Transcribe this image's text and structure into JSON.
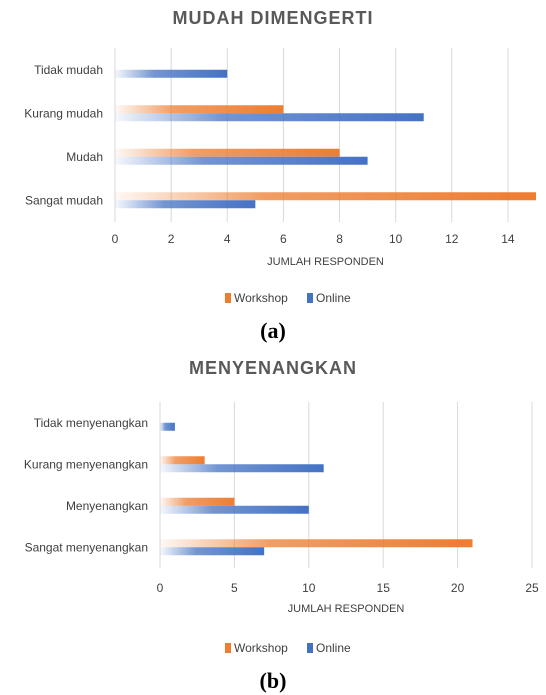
{
  "colors": {
    "workshop": "#ed7d31",
    "online": "#4472c4"
  },
  "legend": {
    "workshop_label": "Workshop",
    "online_label": "Online"
  },
  "chart_data": [
    {
      "type": "bar",
      "orientation": "horizontal",
      "title": "MUDAH DIMENGERTI",
      "xlabel": "JUMLAH RESPONDEN",
      "ylabel": "",
      "categories": [
        "Sangat mudah",
        "Mudah",
        "Kurang mudah",
        "Tidak mudah"
      ],
      "series": [
        {
          "name": "Workshop",
          "values": [
            15,
            8,
            6,
            0
          ]
        },
        {
          "name": "Online",
          "values": [
            5,
            9,
            11,
            4
          ]
        }
      ],
      "xlim": [
        0,
        15
      ],
      "ticks": [
        0,
        2,
        4,
        6,
        8,
        10,
        12,
        14
      ],
      "grid": true,
      "legend_position": "bottom",
      "panel_label": "(a)"
    },
    {
      "type": "bar",
      "orientation": "horizontal",
      "title": "MENYENANGKAN",
      "xlabel": "JUMLAH RESPONDEN",
      "ylabel": "",
      "categories": [
        "Sangat menyenangkan",
        "Menyenangkan",
        "Kurang menyenangkan",
        "Tidak menyenangkan"
      ],
      "series": [
        {
          "name": "Workshop",
          "values": [
            21,
            5,
            3,
            0
          ]
        },
        {
          "name": "Online",
          "values": [
            7,
            10,
            11,
            1
          ]
        }
      ],
      "xlim": [
        0,
        25
      ],
      "ticks": [
        0,
        5,
        10,
        15,
        20,
        25
      ],
      "grid": true,
      "legend_position": "bottom",
      "panel_label": "(b)"
    }
  ]
}
